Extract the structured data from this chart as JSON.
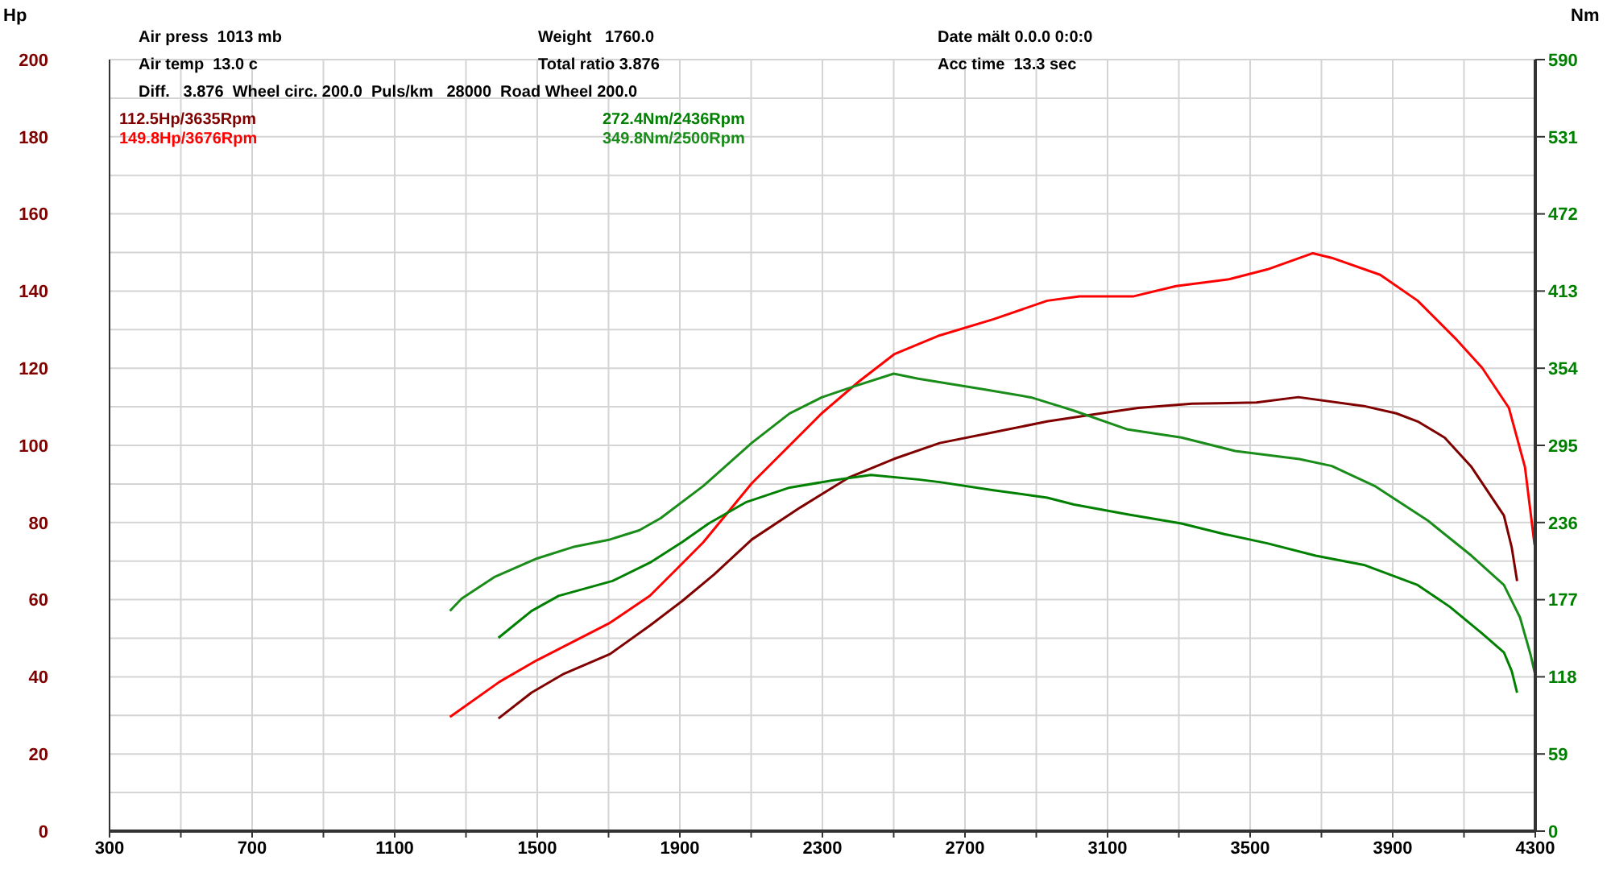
{
  "chart_data": {
    "type": "line",
    "ylabel": "Hp",
    "y2label": "Nm",
    "annotations": [
      "Air press  1013 mb",
      "Air temp  13.0 c",
      "Diff.   3.876  Wheel circ. 200.0  Puls/km   28000  Road Wheel 200.0",
      "Weight   1760.0",
      "Total ratio 3.876",
      "Date mält 0.0.0 0:0:0",
      "Acc time  13.3 sec"
    ],
    "xlim": [
      300,
      4300
    ],
    "xticks": [
      300,
      {
        "value": 500,
        "label": null
      },
      700,
      {
        "value": 900,
        "label": null
      },
      1100,
      {
        "value": 1300,
        "label": null
      },
      1500,
      {
        "value": 1700,
        "label": null
      },
      1900,
      {
        "value": 2100,
        "label": null
      },
      2300,
      {
        "value": 2500,
        "label": null
      },
      2700,
      {
        "value": 2900,
        "label": null
      },
      3100,
      {
        "value": 3300,
        "label": null
      },
      3500,
      {
        "value": 3700,
        "label": null
      },
      3900,
      {
        "value": 4100,
        "label": null
      },
      4300
    ],
    "ylim": [
      0,
      200
    ],
    "yticks": [
      0,
      {
        "value": 10,
        "label": null
      },
      20,
      {
        "value": 30,
        "label": null
      },
      40,
      {
        "value": 50,
        "label": null
      },
      60,
      {
        "value": 70,
        "label": null
      },
      80,
      {
        "value": 90,
        "label": null
      },
      100,
      {
        "value": 110,
        "label": null
      },
      120,
      {
        "value": 130,
        "label": null
      },
      140,
      {
        "value": 150,
        "label": null
      },
      160,
      {
        "value": 170,
        "label": null
      },
      180,
      {
        "value": 190,
        "label": null
      },
      200
    ],
    "y2lim": [
      0,
      590
    ],
    "y2ticks": [
      0,
      59,
      118,
      177,
      236,
      295,
      354,
      413,
      472,
      531,
      590
    ],
    "grid": true,
    "legend": "top left",
    "marker": "none",
    "line_style": "solid",
    "series": [
      {
        "name": "112.5Hp/3635Rpm",
        "color": "#800000",
        "axis": "y",
        "x": [
          1391,
          1484,
          1575,
          1704,
          1816,
          1906,
          1996,
          2102,
          2238,
          2373,
          2501,
          2629,
          2780,
          2931,
          3051,
          3186,
          3337,
          3518,
          3635,
          3819,
          3910,
          3970,
          4046,
          4121,
          4212,
          4234,
          4249
        ],
        "values": [
          29.2,
          35.9,
          40.8,
          45.9,
          53.3,
          59.6,
          66.5,
          75.6,
          83.9,
          91.6,
          96.5,
          100.6,
          103.4,
          106.2,
          107.9,
          109.7,
          110.8,
          111.1,
          112.5,
          110.2,
          108.3,
          106.2,
          102,
          94.4,
          81.8,
          73.5,
          64.8
        ]
      },
      {
        "name": "149.8Hp/3676Rpm",
        "color": "#ff0000",
        "axis": "y",
        "x": [
          1255,
          1394,
          1499,
          1704,
          1816,
          1906,
          1966,
          2102,
          2298,
          2403,
          2501,
          2629,
          2780,
          2931,
          3021,
          3171,
          3292,
          3443,
          3548,
          3676,
          3729,
          3865,
          3970,
          4075,
          4151,
          4226,
          4271,
          4298
        ],
        "values": [
          29.6,
          38.7,
          44.3,
          54,
          61,
          69.3,
          74.9,
          90.2,
          108.3,
          116.6,
          123.6,
          128.5,
          132.7,
          137.5,
          138.6,
          138.6,
          141.3,
          143.1,
          145.6,
          149.8,
          148.6,
          144.2,
          137.5,
          127.8,
          120.1,
          109.7,
          94.4,
          74.2
        ]
      },
      {
        "name": "272.4Nm/2436Rpm",
        "color": "#008000",
        "axis": "y2",
        "x": [
          1391,
          1484,
          1560,
          1711,
          1816,
          1906,
          1981,
          2087,
          2208,
          2328,
          2436,
          2569,
          2629,
          2780,
          2931,
          3006,
          3157,
          3307,
          3428,
          3548,
          3684,
          3819,
          3970,
          4060,
          4151,
          4212,
          4234,
          4249
        ],
        "values": [
          147.8,
          168.4,
          179.9,
          191.3,
          205.3,
          220.9,
          235.3,
          251.7,
          262.7,
          268.2,
          272.4,
          268.9,
          266.9,
          260.7,
          255,
          249.7,
          242.2,
          235.3,
          227.1,
          220.1,
          210.6,
          203.6,
          188.2,
          171.6,
          151.1,
          136.7,
          122.3,
          105.9
        ]
      },
      {
        "name": "349.8Nm/2500Rpm",
        "color": "#1a8c1a",
        "axis": "y2",
        "x": [
          1255,
          1288,
          1379,
          1499,
          1605,
          1704,
          1786,
          1846,
          1966,
          2102,
          2208,
          2298,
          2388,
          2500,
          2569,
          2750,
          2885,
          3006,
          3157,
          3307,
          3458,
          3638,
          3729,
          3849,
          3999,
          4121,
          4212,
          4257,
          4287,
          4299
        ],
        "values": [
          168.4,
          177.8,
          194.2,
          208.5,
          217.6,
          223,
          230,
          239.3,
          264,
          296.9,
          319.4,
          331.7,
          340,
          349.8,
          346,
          337.9,
          331.7,
          321.5,
          307.1,
          301,
          290.7,
          284.5,
          279.2,
          264,
          237.4,
          210.6,
          188.2,
          163.5,
          134.7,
          120.4
        ]
      }
    ]
  }
}
